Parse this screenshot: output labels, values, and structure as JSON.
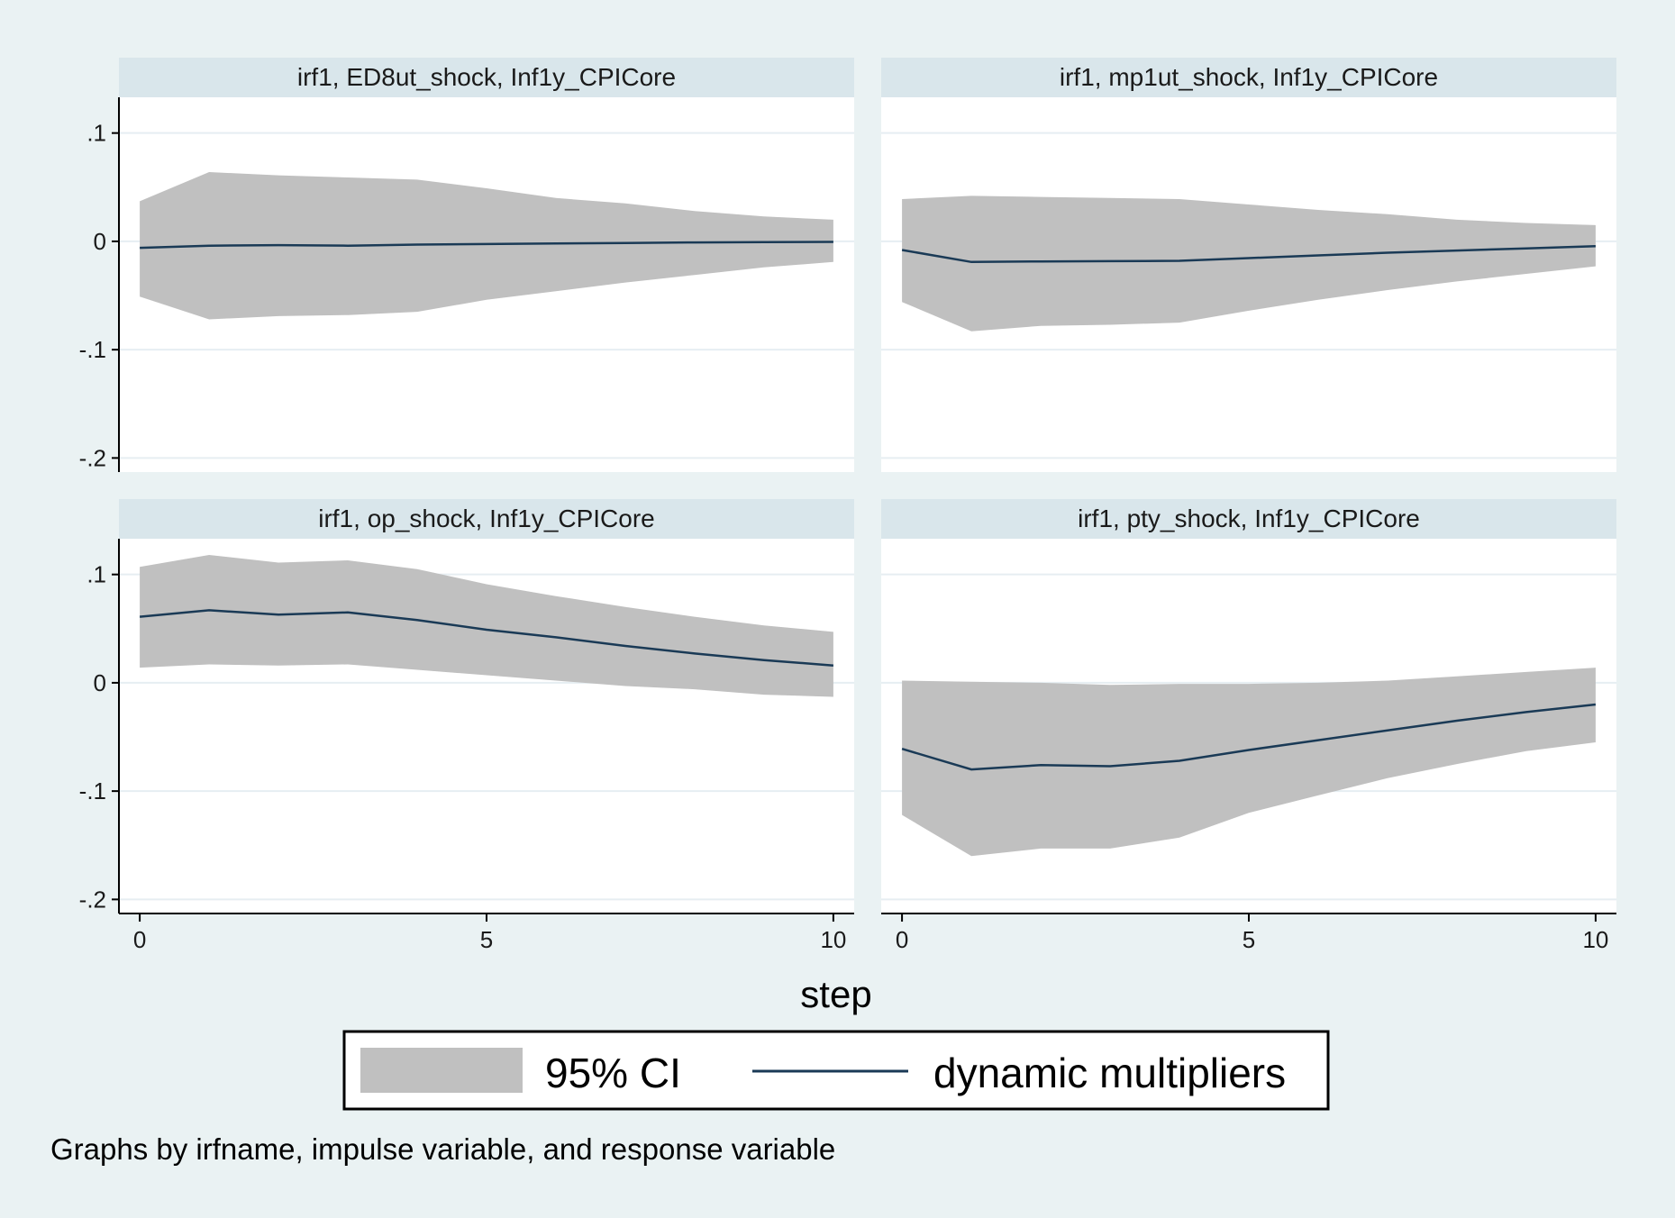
{
  "chart_data": {
    "type": "line",
    "xlabel": "step",
    "ylabel": "",
    "x": [
      0,
      1,
      2,
      3,
      4,
      5,
      6,
      7,
      8,
      9,
      10
    ],
    "xticks": [
      0,
      5,
      10
    ],
    "yticks": [
      0.1,
      0,
      -0.1,
      -0.2
    ],
    "ytick_labels": [
      ".1",
      "0",
      "-.1",
      "-.2"
    ],
    "ylim": [
      -0.213,
      0.133
    ],
    "xlim": [
      -0.3,
      10.3
    ],
    "grid": true,
    "legend_placement": "bottom",
    "legend": [
      {
        "label": "95% CI",
        "kind": "area",
        "color": "#c0c0c0"
      },
      {
        "label": "dynamic multipliers",
        "kind": "line",
        "color": "#1a3a56"
      }
    ],
    "note": "Graphs by irfname, impulse variable, and response variable",
    "colors": {
      "background": "#eaf2f3",
      "plot_bg": "#ffffff",
      "strip": "#d9e6eb",
      "band": "#c0c0c0",
      "line": "#1a3a56",
      "grid": "#e6eef2"
    },
    "panels": [
      {
        "title": "irf1, ED8ut_shock, Inf1y_CPICore",
        "irf": [
          -0.006,
          -0.004,
          -0.0035,
          -0.004,
          -0.003,
          -0.0025,
          -0.002,
          -0.0015,
          -0.001,
          -0.0007,
          -0.0005
        ],
        "lower": [
          -0.051,
          -0.072,
          -0.069,
          -0.068,
          -0.065,
          -0.054,
          -0.046,
          -0.038,
          -0.031,
          -0.024,
          -0.019
        ],
        "upper": [
          0.037,
          0.064,
          0.061,
          0.059,
          0.057,
          0.049,
          0.04,
          0.035,
          0.028,
          0.023,
          0.02
        ]
      },
      {
        "title": "irf1, mp1ut_shock, Inf1y_CPICore",
        "irf": [
          -0.008,
          -0.019,
          -0.0185,
          -0.0183,
          -0.018,
          -0.0155,
          -0.013,
          -0.0105,
          -0.0085,
          -0.0065,
          -0.0045
        ],
        "lower": [
          -0.056,
          -0.083,
          -0.078,
          -0.077,
          -0.075,
          -0.064,
          -0.054,
          -0.045,
          -0.037,
          -0.03,
          -0.023
        ],
        "upper": [
          0.039,
          0.042,
          0.041,
          0.04,
          0.039,
          0.034,
          0.029,
          0.025,
          0.02,
          0.017,
          0.015
        ]
      },
      {
        "title": "irf1, op_shock, Inf1y_CPICore",
        "irf": [
          0.061,
          0.067,
          0.063,
          0.065,
          0.058,
          0.049,
          0.042,
          0.034,
          0.027,
          0.021,
          0.016
        ],
        "lower": [
          0.014,
          0.017,
          0.016,
          0.017,
          0.012,
          0.007,
          0.002,
          -0.003,
          -0.006,
          -0.011,
          -0.013
        ],
        "upper": [
          0.107,
          0.118,
          0.111,
          0.113,
          0.105,
          0.091,
          0.08,
          0.07,
          0.061,
          0.053,
          0.047
        ]
      },
      {
        "title": "irf1, pty_shock, Inf1y_CPICore",
        "irf": [
          -0.061,
          -0.08,
          -0.076,
          -0.077,
          -0.072,
          -0.062,
          -0.053,
          -0.044,
          -0.035,
          -0.027,
          -0.02
        ],
        "lower": [
          -0.122,
          -0.16,
          -0.153,
          -0.153,
          -0.143,
          -0.12,
          -0.104,
          -0.088,
          -0.075,
          -0.063,
          -0.055
        ],
        "upper": [
          0.002,
          0.001,
          0.0,
          -0.002,
          -0.001,
          -0.001,
          0.0,
          0.002,
          0.006,
          0.01,
          0.014
        ]
      }
    ]
  }
}
